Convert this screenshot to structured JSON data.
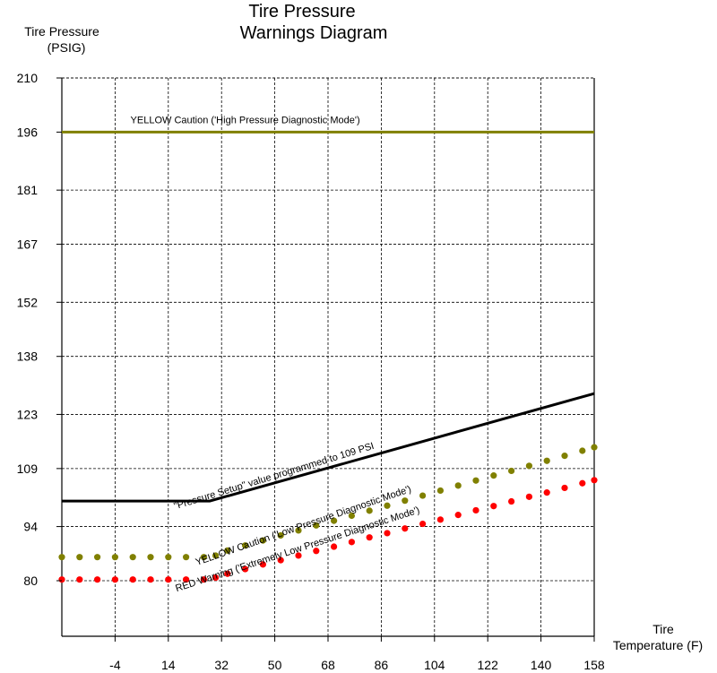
{
  "chart_data": {
    "type": "line",
    "title_line1": "Tire Pressure",
    "title_line2": "Warnings Diagram",
    "ylabel_line1": "Tire Pressure",
    "ylabel_line2": "(PSIG)",
    "xlabel_line1": "Tire",
    "xlabel_line2": "Temperature (F)",
    "yticks": [
      80,
      94,
      109,
      123,
      138,
      152,
      167,
      181,
      196,
      210
    ],
    "xticks": [
      -4,
      14,
      32,
      50,
      68,
      86,
      104,
      122,
      140,
      158
    ],
    "xlim": [
      -22,
      158
    ],
    "ylim": [
      80,
      210
    ],
    "bottom_band": 11.8,
    "grid": true,
    "series": [
      {
        "name": "YELLOW Caution ('High Pressure Diagnostic Mode')",
        "style": "solid",
        "color": "#808000",
        "x": [
          -22,
          158
        ],
        "y": [
          196,
          196
        ]
      },
      {
        "name": "\"Pressure Setup\" value programmed to 109 PSI",
        "style": "solid",
        "color": "#000000",
        "x": [
          -22,
          28,
          158
        ],
        "y": [
          100.6,
          100.6,
          128.4
        ]
      },
      {
        "name": "YELLOW Caution ('Low Pressure Diagnostic Mode')",
        "style": "dotted",
        "color": "#808000",
        "x": [
          -22,
          -16,
          -10,
          -4,
          2,
          8,
          14,
          20,
          26,
          30,
          34,
          40,
          46,
          52,
          58,
          64,
          70,
          76,
          82,
          88,
          94,
          100,
          106,
          112,
          118,
          124,
          130,
          136,
          142,
          148,
          154,
          158
        ],
        "y": [
          86.1,
          86.1,
          86.1,
          86.1,
          86.1,
          86.1,
          86.1,
          86.1,
          86.1,
          86.5,
          87.8,
          89.1,
          90.4,
          91.7,
          93.0,
          94.3,
          95.5,
          96.8,
          98.1,
          99.4,
          100.7,
          102.0,
          103.3,
          104.6,
          105.9,
          107.2,
          108.4,
          109.7,
          111.0,
          112.3,
          113.6,
          114.5
        ]
      },
      {
        "name": "RED Warning ('Extremely Low Pressure Diagnostic Mode')",
        "style": "dotted",
        "color": "#ff0000",
        "x": [
          -22,
          -16,
          -10,
          -4,
          2,
          8,
          14,
          20,
          26,
          30,
          34,
          40,
          46,
          52,
          58,
          64,
          70,
          76,
          82,
          88,
          94,
          100,
          106,
          112,
          118,
          124,
          130,
          136,
          142,
          148,
          154,
          158
        ],
        "y": [
          80.3,
          80.3,
          80.3,
          80.3,
          80.3,
          80.3,
          80.3,
          80.3,
          80.3,
          80.8,
          81.8,
          83.0,
          84.2,
          85.3,
          86.5,
          87.7,
          88.8,
          90.0,
          91.2,
          92.3,
          93.5,
          94.7,
          95.8,
          97.0,
          98.2,
          99.3,
          100.5,
          101.7,
          102.8,
          104.0,
          105.2,
          106.0
        ]
      }
    ],
    "annotations": [
      {
        "text": "YELLOW Caution ('High Pressure Diagnostic Mode')",
        "x": 40,
        "y": 198.3,
        "angle": 0
      },
      {
        "text": "\"Pressure Setup\" value programmed to 109 PSI",
        "x": 50,
        "y": 106.3,
        "angle": -17
      },
      {
        "text": "YELLOW Caution ('Low Pressure Diagnostic Mode')",
        "x": 60,
        "y": 93.5,
        "angle": -19
      },
      {
        "text": "RED Warning ('Extremely Low Pressure Diagnostic Mode')",
        "x": 58,
        "y": 87.4,
        "angle": -18
      }
    ]
  }
}
